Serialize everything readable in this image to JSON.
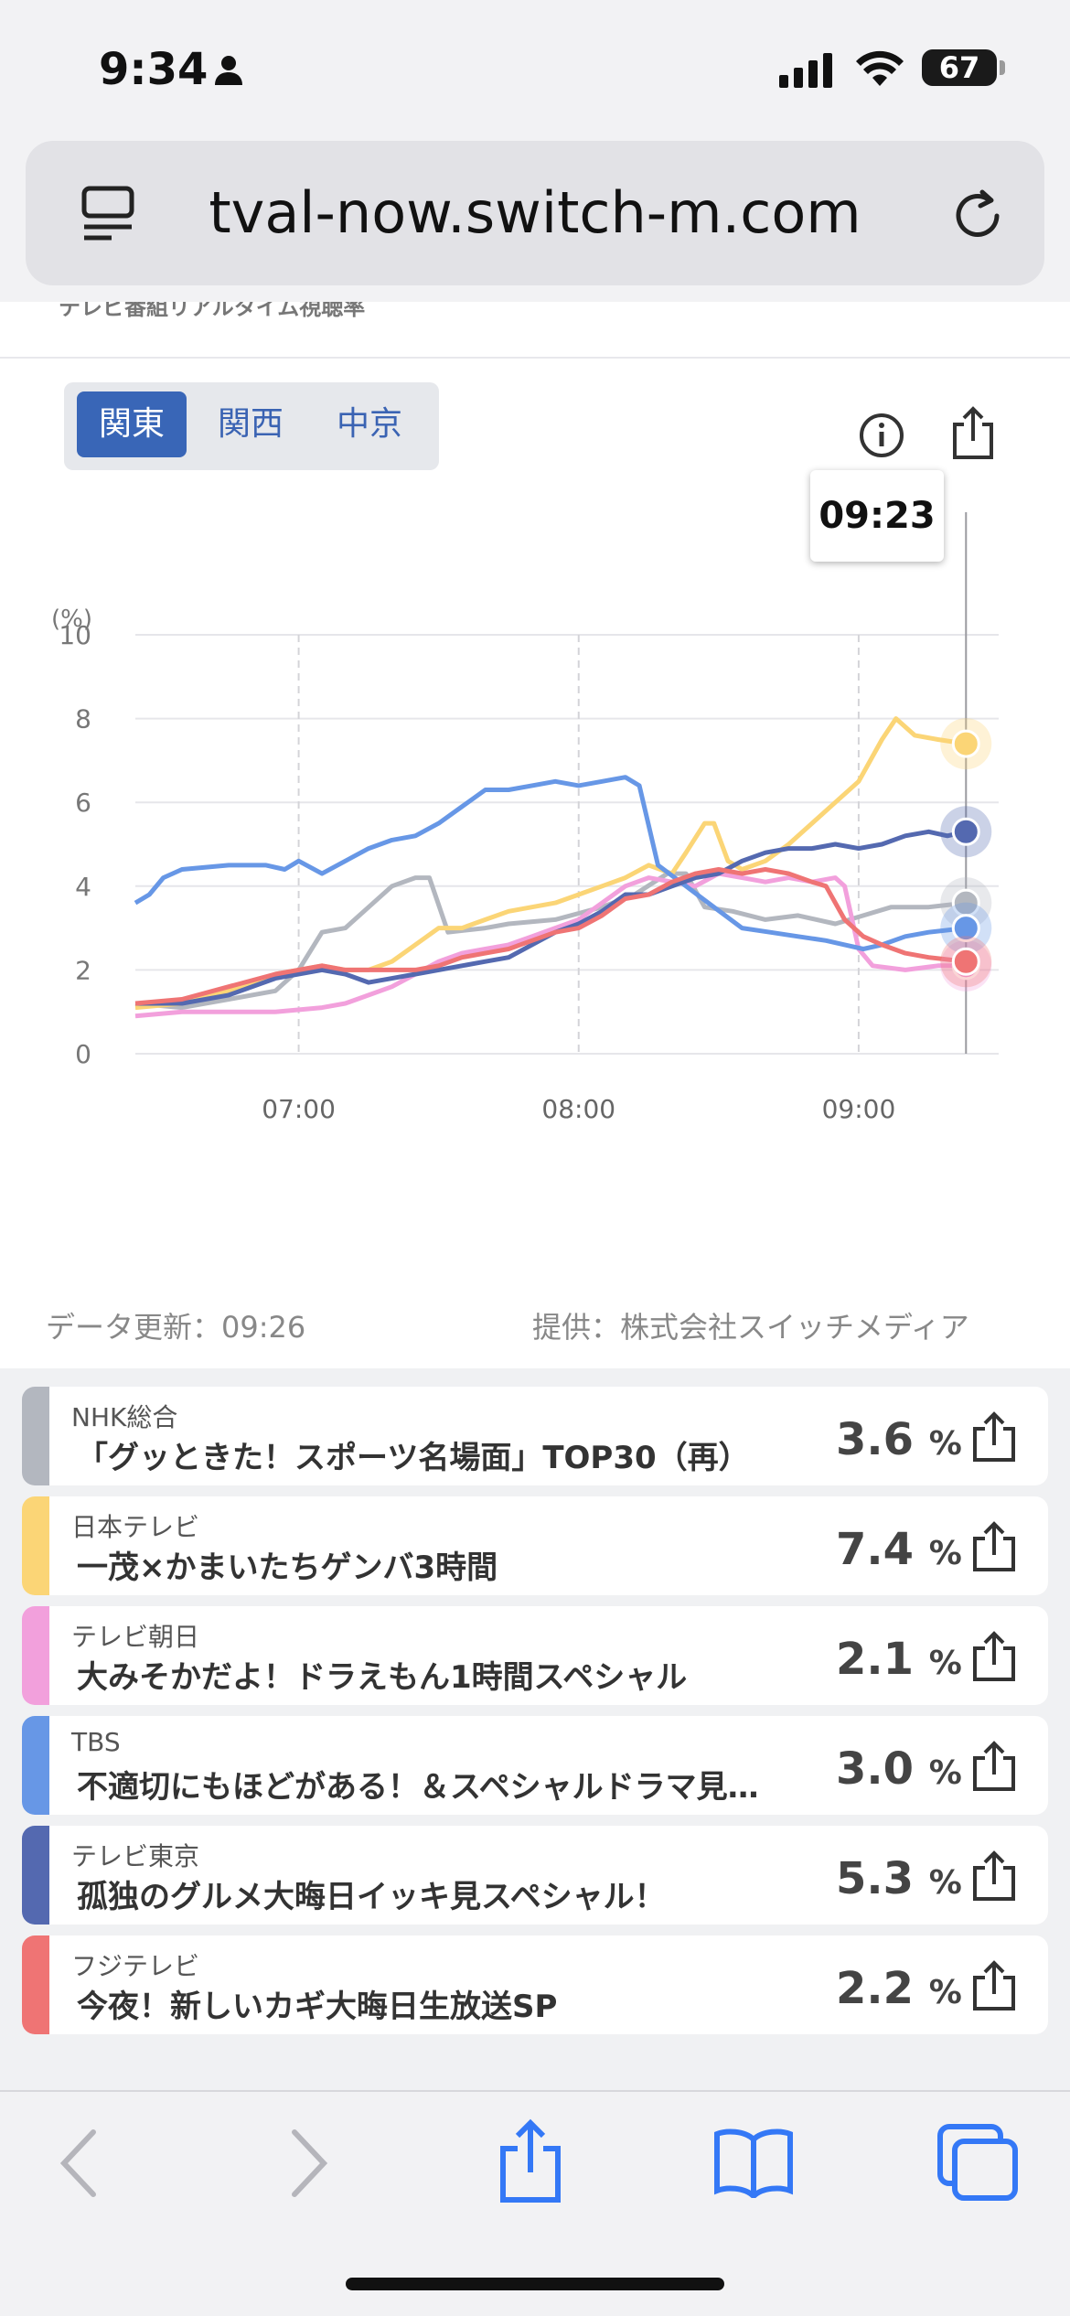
{
  "status": {
    "time": "9:34",
    "battery": "67"
  },
  "browser": {
    "url": "tval-now.switch-m.com"
  },
  "page": {
    "cut_subtitle": "テレビ番組リアルタイム視聴率",
    "regions": [
      "関東",
      "関西",
      "中京"
    ],
    "active_region": "関東",
    "tooltip_time": "09:23",
    "data_updated": "データ更新：09:26",
    "provider": "提供：株式会社スイッチメディア"
  },
  "chart_data": {
    "type": "line",
    "y_unit": "(%)",
    "ylim": [
      0,
      10
    ],
    "y_ticks": [
      "0",
      "2",
      "4",
      "6",
      "8",
      "10"
    ],
    "x_ticks": [
      "07:00",
      "08:00",
      "09:00"
    ],
    "x_domain": [
      "06:25",
      "09:30"
    ],
    "series": [
      {
        "name": "NHK総合",
        "color": "#b3b7bf",
        "last": 3.6,
        "points": [
          [
            0,
            1.2
          ],
          [
            10,
            1.1
          ],
          [
            20,
            1.3
          ],
          [
            30,
            1.5
          ],
          [
            35,
            2.0
          ],
          [
            40,
            2.9
          ],
          [
            45,
            3.0
          ],
          [
            50,
            3.5
          ],
          [
            55,
            4.0
          ],
          [
            60,
            4.2
          ],
          [
            63,
            4.2
          ],
          [
            67,
            2.9
          ],
          [
            75,
            3.0
          ],
          [
            80,
            3.1
          ],
          [
            90,
            3.2
          ],
          [
            100,
            3.5
          ],
          [
            107,
            3.8
          ],
          [
            114,
            4.3
          ],
          [
            118,
            4.3
          ],
          [
            122,
            3.5
          ],
          [
            128,
            3.4
          ],
          [
            135,
            3.2
          ],
          [
            142,
            3.3
          ],
          [
            150,
            3.1
          ],
          [
            156,
            3.3
          ],
          [
            162,
            3.5
          ],
          [
            170,
            3.5
          ],
          [
            178,
            3.6
          ]
        ]
      },
      {
        "name": "日本テレビ",
        "color": "#fbd576",
        "last": 7.4,
        "points": [
          [
            0,
            1.1
          ],
          [
            10,
            1.2
          ],
          [
            20,
            1.5
          ],
          [
            30,
            1.9
          ],
          [
            35,
            2.0
          ],
          [
            40,
            2.1
          ],
          [
            45,
            2.0
          ],
          [
            50,
            2.0
          ],
          [
            55,
            2.2
          ],
          [
            60,
            2.6
          ],
          [
            65,
            3.0
          ],
          [
            70,
            3.0
          ],
          [
            75,
            3.2
          ],
          [
            80,
            3.4
          ],
          [
            85,
            3.5
          ],
          [
            90,
            3.6
          ],
          [
            95,
            3.8
          ],
          [
            100,
            4.0
          ],
          [
            105,
            4.2
          ],
          [
            110,
            4.5
          ],
          [
            115,
            4.3
          ],
          [
            118,
            4.8
          ],
          [
            122,
            5.5
          ],
          [
            124,
            5.5
          ],
          [
            127,
            4.6
          ],
          [
            130,
            4.4
          ],
          [
            135,
            4.6
          ],
          [
            140,
            5.0
          ],
          [
            145,
            5.5
          ],
          [
            150,
            6.0
          ],
          [
            155,
            6.5
          ],
          [
            160,
            7.5
          ],
          [
            163,
            8.0
          ],
          [
            167,
            7.6
          ],
          [
            172,
            7.5
          ],
          [
            178,
            7.4
          ]
        ]
      },
      {
        "name": "テレビ朝日",
        "color": "#f2a0dc",
        "last": 2.1,
        "points": [
          [
            0,
            0.9
          ],
          [
            10,
            1.0
          ],
          [
            20,
            1.0
          ],
          [
            30,
            1.0
          ],
          [
            40,
            1.1
          ],
          [
            45,
            1.2
          ],
          [
            50,
            1.4
          ],
          [
            55,
            1.6
          ],
          [
            60,
            1.9
          ],
          [
            65,
            2.2
          ],
          [
            70,
            2.4
          ],
          [
            75,
            2.5
          ],
          [
            80,
            2.6
          ],
          [
            85,
            2.8
          ],
          [
            90,
            3.0
          ],
          [
            95,
            3.2
          ],
          [
            100,
            3.6
          ],
          [
            105,
            4.0
          ],
          [
            110,
            4.2
          ],
          [
            115,
            4.1
          ],
          [
            120,
            4.0
          ],
          [
            125,
            4.3
          ],
          [
            130,
            4.2
          ],
          [
            135,
            4.1
          ],
          [
            140,
            4.2
          ],
          [
            145,
            4.1
          ],
          [
            150,
            4.2
          ],
          [
            152,
            4.0
          ],
          [
            155,
            2.5
          ],
          [
            158,
            2.1
          ],
          [
            165,
            2.0
          ],
          [
            172,
            2.1
          ],
          [
            178,
            2.1
          ]
        ]
      },
      {
        "name": "TBS",
        "color": "#6797e6",
        "last": 3.0,
        "points": [
          [
            0,
            3.6
          ],
          [
            3,
            3.8
          ],
          [
            6,
            4.2
          ],
          [
            10,
            4.4
          ],
          [
            20,
            4.5
          ],
          [
            28,
            4.5
          ],
          [
            32,
            4.4
          ],
          [
            35,
            4.6
          ],
          [
            40,
            4.3
          ],
          [
            45,
            4.6
          ],
          [
            50,
            4.9
          ],
          [
            55,
            5.1
          ],
          [
            60,
            5.2
          ],
          [
            65,
            5.5
          ],
          [
            70,
            5.9
          ],
          [
            75,
            6.3
          ],
          [
            80,
            6.3
          ],
          [
            85,
            6.4
          ],
          [
            90,
            6.5
          ],
          [
            95,
            6.4
          ],
          [
            100,
            6.5
          ],
          [
            105,
            6.6
          ],
          [
            108,
            6.4
          ],
          [
            112,
            4.5
          ],
          [
            118,
            4.0
          ],
          [
            124,
            3.5
          ],
          [
            130,
            3.0
          ],
          [
            136,
            2.9
          ],
          [
            142,
            2.8
          ],
          [
            148,
            2.7
          ],
          [
            152,
            2.6
          ],
          [
            156,
            2.5
          ],
          [
            160,
            2.6
          ],
          [
            165,
            2.8
          ],
          [
            170,
            2.9
          ],
          [
            178,
            3.0
          ]
        ]
      },
      {
        "name": "テレビ東京",
        "color": "#5469b0",
        "last": 5.3,
        "points": [
          [
            0,
            1.2
          ],
          [
            10,
            1.2
          ],
          [
            20,
            1.4
          ],
          [
            30,
            1.8
          ],
          [
            40,
            2.0
          ],
          [
            45,
            1.9
          ],
          [
            50,
            1.7
          ],
          [
            55,
            1.8
          ],
          [
            60,
            1.9
          ],
          [
            65,
            2.0
          ],
          [
            70,
            2.1
          ],
          [
            75,
            2.2
          ],
          [
            80,
            2.3
          ],
          [
            85,
            2.6
          ],
          [
            90,
            2.9
          ],
          [
            95,
            3.1
          ],
          [
            100,
            3.4
          ],
          [
            105,
            3.8
          ],
          [
            110,
            3.8
          ],
          [
            115,
            4.0
          ],
          [
            120,
            4.2
          ],
          [
            125,
            4.3
          ],
          [
            130,
            4.6
          ],
          [
            135,
            4.8
          ],
          [
            140,
            4.9
          ],
          [
            145,
            4.9
          ],
          [
            150,
            5.0
          ],
          [
            155,
            4.9
          ],
          [
            160,
            5.0
          ],
          [
            165,
            5.2
          ],
          [
            170,
            5.3
          ],
          [
            174,
            5.2
          ],
          [
            178,
            5.3
          ]
        ]
      },
      {
        "name": "フジテレビ",
        "color": "#ef7474",
        "last": 2.2,
        "points": [
          [
            0,
            1.2
          ],
          [
            10,
            1.3
          ],
          [
            20,
            1.6
          ],
          [
            30,
            1.9
          ],
          [
            40,
            2.1
          ],
          [
            45,
            2.0
          ],
          [
            50,
            2.0
          ],
          [
            55,
            2.0
          ],
          [
            60,
            2.0
          ],
          [
            65,
            2.1
          ],
          [
            70,
            2.3
          ],
          [
            75,
            2.4
          ],
          [
            80,
            2.5
          ],
          [
            85,
            2.7
          ],
          [
            90,
            2.9
          ],
          [
            95,
            3.0
          ],
          [
            100,
            3.3
          ],
          [
            105,
            3.7
          ],
          [
            110,
            3.8
          ],
          [
            115,
            4.1
          ],
          [
            120,
            4.3
          ],
          [
            125,
            4.4
          ],
          [
            130,
            4.3
          ],
          [
            135,
            4.4
          ],
          [
            140,
            4.3
          ],
          [
            145,
            4.1
          ],
          [
            148,
            4.0
          ],
          [
            152,
            3.2
          ],
          [
            156,
            2.8
          ],
          [
            160,
            2.6
          ],
          [
            165,
            2.4
          ],
          [
            170,
            2.3
          ],
          [
            178,
            2.2
          ]
        ]
      }
    ]
  },
  "programs": [
    {
      "channel": "NHK総合",
      "title": "「グッときた！スポーツ名場面」TOP30（再）",
      "value": "3.6",
      "unit": "%",
      "color": "#b3b7bf"
    },
    {
      "channel": "日本テレビ",
      "title": "一茂×かまいたちゲンバ3時間",
      "value": "7.4",
      "unit": "%",
      "color": "#fbd576"
    },
    {
      "channel": "テレビ朝日",
      "title": "大みそかだよ！ドラえもん1時間スペシャル",
      "value": "2.1",
      "unit": "%",
      "color": "#f2a0dc"
    },
    {
      "channel": "TBS",
      "title": "不適切にもほどがある！＆スペシャルドラマ見…",
      "value": "3.0",
      "unit": "%",
      "color": "#6797e6"
    },
    {
      "channel": "テレビ東京",
      "title": "孤独のグルメ大晦日イッキ見スペシャル！",
      "value": "5.3",
      "unit": "%",
      "color": "#5469b0"
    },
    {
      "channel": "フジテレビ",
      "title": "今夜！新しいカギ大晦日生放送SP",
      "value": "2.2",
      "unit": "%",
      "color": "#ef7474"
    }
  ]
}
